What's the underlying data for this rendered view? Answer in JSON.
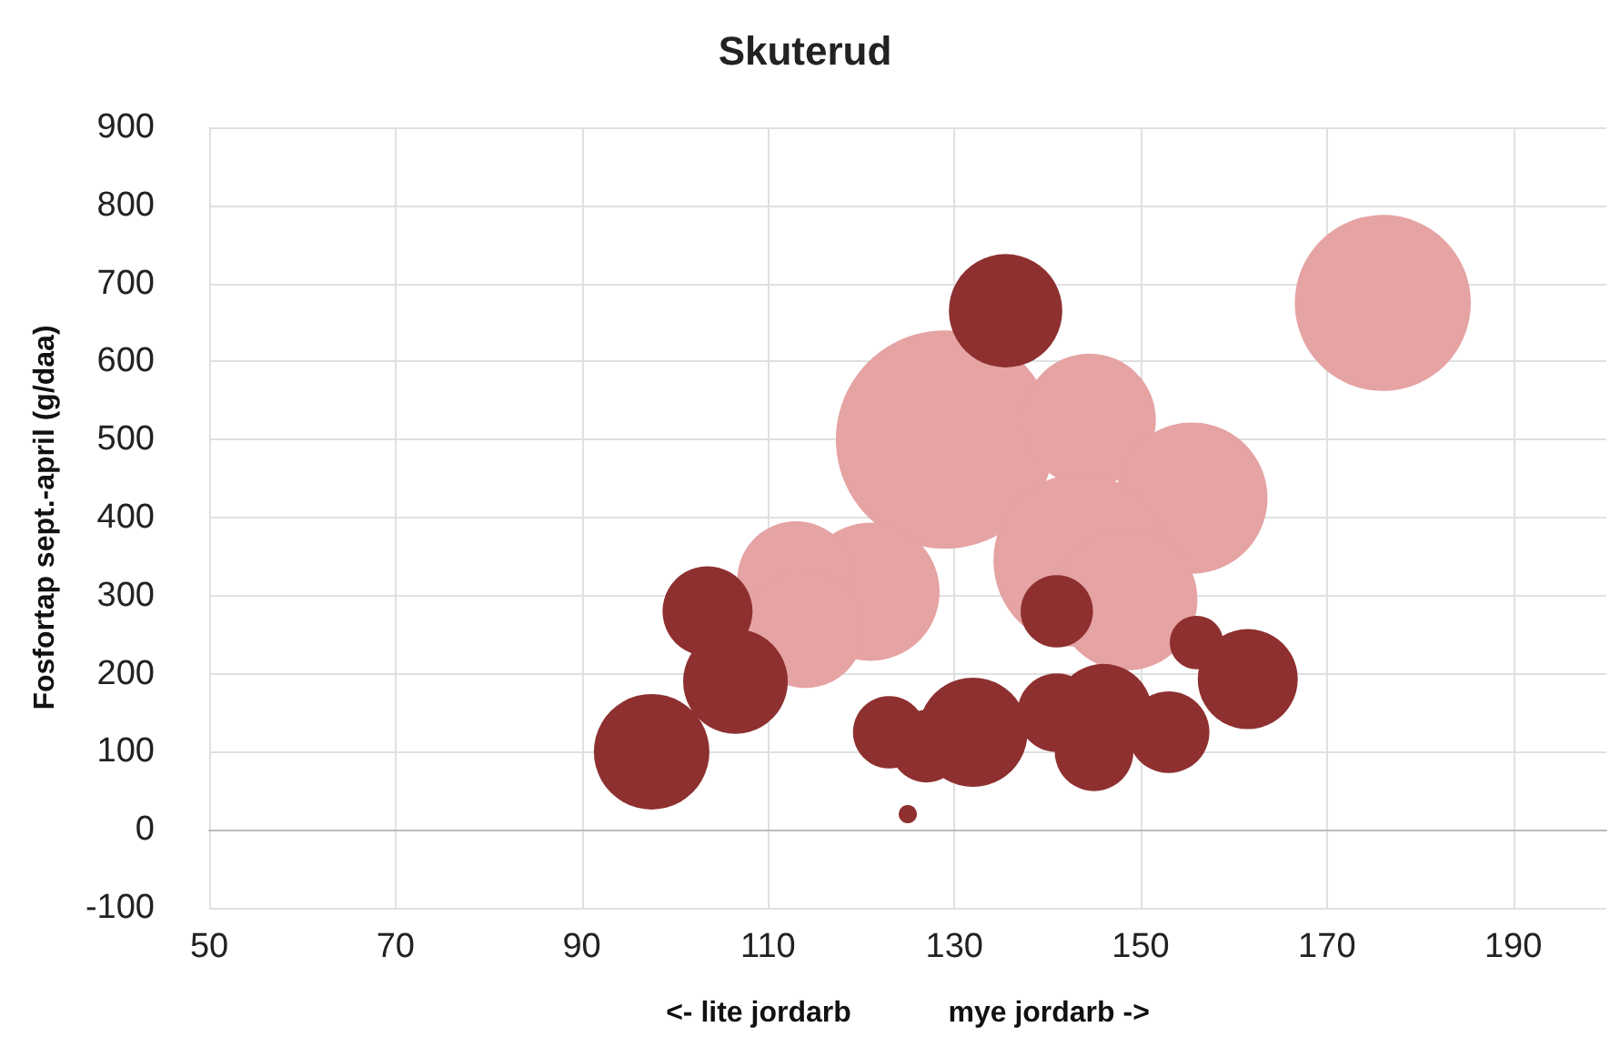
{
  "chart_data": {
    "type": "bubble",
    "title": "Skuterud",
    "xlabel": "<- lite jordarb            mye jordarb ->",
    "ylabel": "Fosfortap sept.-april (g/daa)",
    "xlim": [
      50,
      200
    ],
    "xticks": [
      50,
      70,
      90,
      110,
      130,
      150,
      170,
      190
    ],
    "ylim": [
      -100,
      900
    ],
    "yticks": [
      -100,
      0,
      100,
      200,
      300,
      400,
      500,
      600,
      700,
      800,
      900
    ],
    "grid": true,
    "series": [
      {
        "color": "#e6a3a3",
        "x": [
          129,
          144.5,
          155.5,
          143.5,
          148.5,
          121,
          113,
          114,
          176
        ],
        "values": [
          500,
          525,
          425,
          345,
          295,
          305,
          320,
          257,
          675
        ],
        "sizes": [
          1,
          0.37,
          0.48,
          0.63,
          0.42,
          0.4,
          0.29,
          0.29,
          0.65
        ]
      },
      {
        "color": "#8e3030",
        "x": [
          97.5,
          103.5,
          106.5,
          123,
          127,
          132,
          135.5,
          125,
          141,
          145,
          146,
          153,
          156,
          161.5,
          141
        ],
        "values": [
          100,
          280,
          190,
          125,
          107,
          125,
          665,
          20,
          150,
          100,
          150,
          125,
          240,
          193,
          280
        ],
        "sizes": [
          0.28,
          0.17,
          0.23,
          0.11,
          0.11,
          0.25,
          0.27,
          0.007,
          0.13,
          0.13,
          0.2,
          0.14,
          0.06,
          0.21,
          0.11
        ]
      }
    ]
  }
}
